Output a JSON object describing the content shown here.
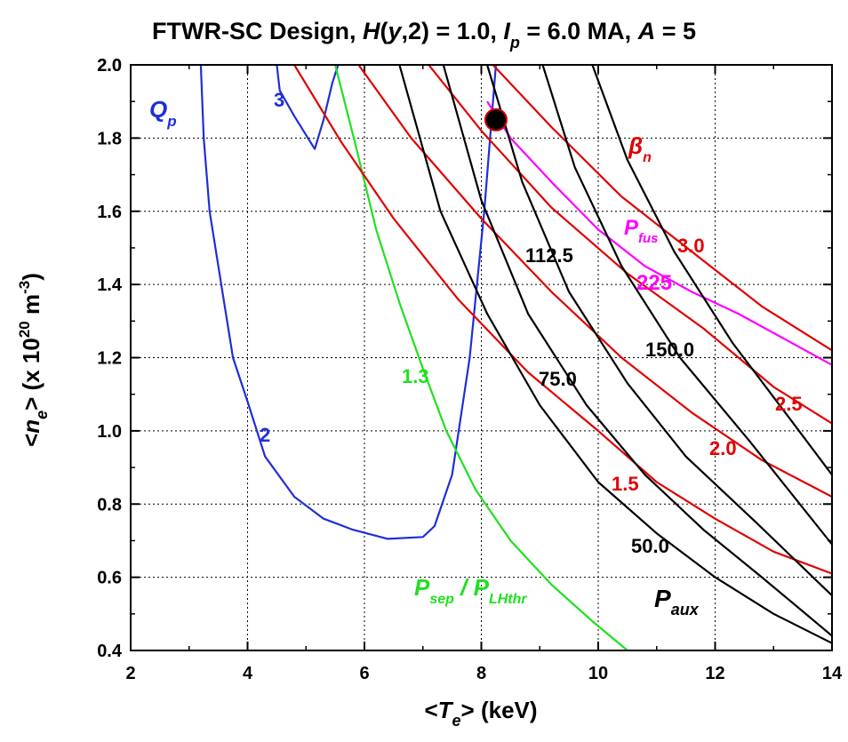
{
  "chart_data": {
    "type": "line",
    "title": {
      "main": "FTWR-SC Design, ",
      "h": "H",
      "h_open": "(",
      "h_y": "y",
      "h_rest": ",2) = 1.0, ",
      "ip": "I",
      "ip_sub": "p",
      "ip_rest": " = 6.0 MA, ",
      "a": "A",
      "a_rest": " = 5"
    },
    "xlabel": {
      "open": "<",
      "sym": "T",
      "sub": "e",
      "close": "> (keV)"
    },
    "ylabel": {
      "open": "<",
      "sym": "n",
      "sub": "e",
      "mid": "> (x 10",
      "sup": "20",
      "unit": " m",
      "unit_sup": "-3",
      "close": ")"
    },
    "xlim": [
      2,
      14
    ],
    "ylim": [
      0.4,
      2.0
    ],
    "x_ticks": [
      "2",
      "4",
      "6",
      "8",
      "10",
      "12",
      "14"
    ],
    "y_ticks": [
      "0.4",
      "0.6",
      "0.8",
      "1.0",
      "1.2",
      "1.4",
      "1.6",
      "1.8",
      "2.0"
    ],
    "y_ticks_overlap": "2.0",
    "grid": true,
    "colors": {
      "qp": "#1f2fd6",
      "psep": "#1fe01f",
      "paux": "#000000",
      "betan": "#e00000",
      "pfus": "#ff00ff",
      "point": "#000000"
    },
    "series": [
      {
        "group": "qp",
        "label": "2",
        "points": [
          [
            3.2,
            2.0
          ],
          [
            3.25,
            1.8
          ],
          [
            3.35,
            1.6
          ],
          [
            3.55,
            1.4
          ],
          [
            3.75,
            1.2
          ],
          [
            4.0,
            1.08
          ],
          [
            4.3,
            0.93
          ],
          [
            4.8,
            0.82
          ],
          [
            5.3,
            0.76
          ],
          [
            5.8,
            0.73
          ],
          [
            6.4,
            0.705
          ],
          [
            7.0,
            0.71
          ],
          [
            7.2,
            0.74
          ],
          [
            7.5,
            0.88
          ],
          [
            7.8,
            1.2
          ],
          [
            8.05,
            1.6
          ],
          [
            8.25,
            2.0
          ]
        ]
      },
      {
        "group": "qp",
        "label": "3",
        "points": [
          [
            4.5,
            2.0
          ],
          [
            4.55,
            1.93
          ],
          [
            4.8,
            1.86
          ],
          [
            5.15,
            1.77
          ],
          [
            5.3,
            1.85
          ],
          [
            5.45,
            1.95
          ],
          [
            5.55,
            2.0
          ]
        ]
      },
      {
        "group": "psep",
        "label": "1.3",
        "points": [
          [
            5.5,
            2.0
          ],
          [
            5.85,
            1.78
          ],
          [
            6.2,
            1.55
          ],
          [
            6.6,
            1.35
          ],
          [
            7.0,
            1.17
          ],
          [
            7.4,
            1.0
          ],
          [
            7.9,
            0.84
          ],
          [
            8.5,
            0.7
          ],
          [
            9.2,
            0.58
          ],
          [
            9.9,
            0.48
          ],
          [
            10.5,
            0.4
          ]
        ]
      },
      {
        "group": "paux",
        "label": "50.0",
        "points": [
          [
            7.35,
            2.0
          ],
          [
            8.0,
            1.63
          ],
          [
            8.8,
            1.32
          ],
          [
            9.8,
            1.07
          ],
          [
            10.8,
            0.88
          ],
          [
            11.8,
            0.73
          ],
          [
            12.8,
            0.6
          ],
          [
            14.0,
            0.44
          ]
        ]
      },
      {
        "group": "paux",
        "label": "75.0",
        "points": [
          [
            8.1,
            2.0
          ],
          [
            8.7,
            1.68
          ],
          [
            9.5,
            1.38
          ],
          [
            10.5,
            1.13
          ],
          [
            11.5,
            0.93
          ],
          [
            12.7,
            0.75
          ],
          [
            14.0,
            0.55
          ]
        ]
      },
      {
        "group": "paux",
        "label": "112.5",
        "points": [
          [
            9.05,
            2.0
          ],
          [
            9.6,
            1.72
          ],
          [
            10.4,
            1.45
          ],
          [
            11.4,
            1.2
          ],
          [
            12.6,
            0.97
          ],
          [
            14.0,
            0.69
          ]
        ]
      },
      {
        "group": "paux",
        "label": "150.0",
        "points": [
          [
            9.9,
            2.0
          ],
          [
            10.5,
            1.74
          ],
          [
            11.3,
            1.49
          ],
          [
            12.3,
            1.24
          ],
          [
            13.2,
            1.05
          ],
          [
            14.0,
            0.88
          ]
        ]
      },
      {
        "group": "paux",
        "label": "",
        "points": [
          [
            6.6,
            2.0
          ],
          [
            7.3,
            1.6
          ],
          [
            8.1,
            1.32
          ],
          [
            9.0,
            1.07
          ],
          [
            10.0,
            0.86
          ],
          [
            11.0,
            0.72
          ],
          [
            12.0,
            0.6
          ],
          [
            13.0,
            0.5
          ],
          [
            14.0,
            0.42
          ]
        ]
      },
      {
        "group": "betan",
        "label": "1.5",
        "points": [
          [
            4.8,
            2.0
          ],
          [
            5.6,
            1.79
          ],
          [
            6.5,
            1.58
          ],
          [
            7.6,
            1.36
          ],
          [
            8.8,
            1.16
          ],
          [
            10.0,
            1.0
          ],
          [
            11.0,
            0.86
          ],
          [
            12.0,
            0.76
          ],
          [
            13.0,
            0.67
          ],
          [
            14.0,
            0.61
          ]
        ]
      },
      {
        "group": "betan",
        "label": "2.0",
        "points": [
          [
            5.9,
            2.0
          ],
          [
            6.8,
            1.8
          ],
          [
            8.0,
            1.58
          ],
          [
            9.2,
            1.38
          ],
          [
            10.4,
            1.2
          ],
          [
            11.6,
            1.05
          ],
          [
            12.8,
            0.92
          ],
          [
            14.0,
            0.82
          ]
        ]
      },
      {
        "group": "betan",
        "label": "2.5",
        "points": [
          [
            7.1,
            2.0
          ],
          [
            8.0,
            1.82
          ],
          [
            9.2,
            1.61
          ],
          [
            10.5,
            1.43
          ],
          [
            11.8,
            1.28
          ],
          [
            13.0,
            1.12
          ],
          [
            14.0,
            1.02
          ]
        ]
      },
      {
        "group": "betan",
        "label": "3.0",
        "points": [
          [
            8.2,
            2.0
          ],
          [
            9.2,
            1.83
          ],
          [
            10.4,
            1.64
          ],
          [
            11.6,
            1.49
          ],
          [
            12.8,
            1.34
          ],
          [
            14.0,
            1.22
          ]
        ]
      },
      {
        "group": "pfus",
        "label": "225",
        "points": [
          [
            8.1,
            1.9
          ],
          [
            8.5,
            1.8
          ],
          [
            9.2,
            1.68
          ],
          [
            10.0,
            1.55
          ],
          [
            10.8,
            1.45
          ],
          [
            11.6,
            1.38
          ],
          [
            12.4,
            1.32
          ],
          [
            13.2,
            1.25
          ],
          [
            14.0,
            1.18
          ]
        ]
      }
    ],
    "labels": {
      "qp_curve": {
        "sym": "Q",
        "sub": "p"
      },
      "qp_2": "2",
      "qp_3": "3",
      "psep_level": "1.3",
      "psep_curve": {
        "a": "P",
        "a_sub": "sep",
        "slash": " / ",
        "b": "P",
        "b_sub": "LHthr"
      },
      "paux_curve": {
        "sym": "P",
        "sub": "aux"
      },
      "paux_50": "50.0",
      "paux_75": "75.0",
      "paux_112": "112.5",
      "paux_150": "150.0",
      "betan_curve": {
        "sym": "β",
        "sub": "n"
      },
      "betan_15": "1.5",
      "betan_20": "2.0",
      "betan_25": "2.5",
      "betan_30": "3.0",
      "pfus_curve": {
        "sym": "P",
        "sub": "fus"
      },
      "pfus_225": "225"
    },
    "operating_point": {
      "x": 8.25,
      "y": 1.85
    }
  }
}
